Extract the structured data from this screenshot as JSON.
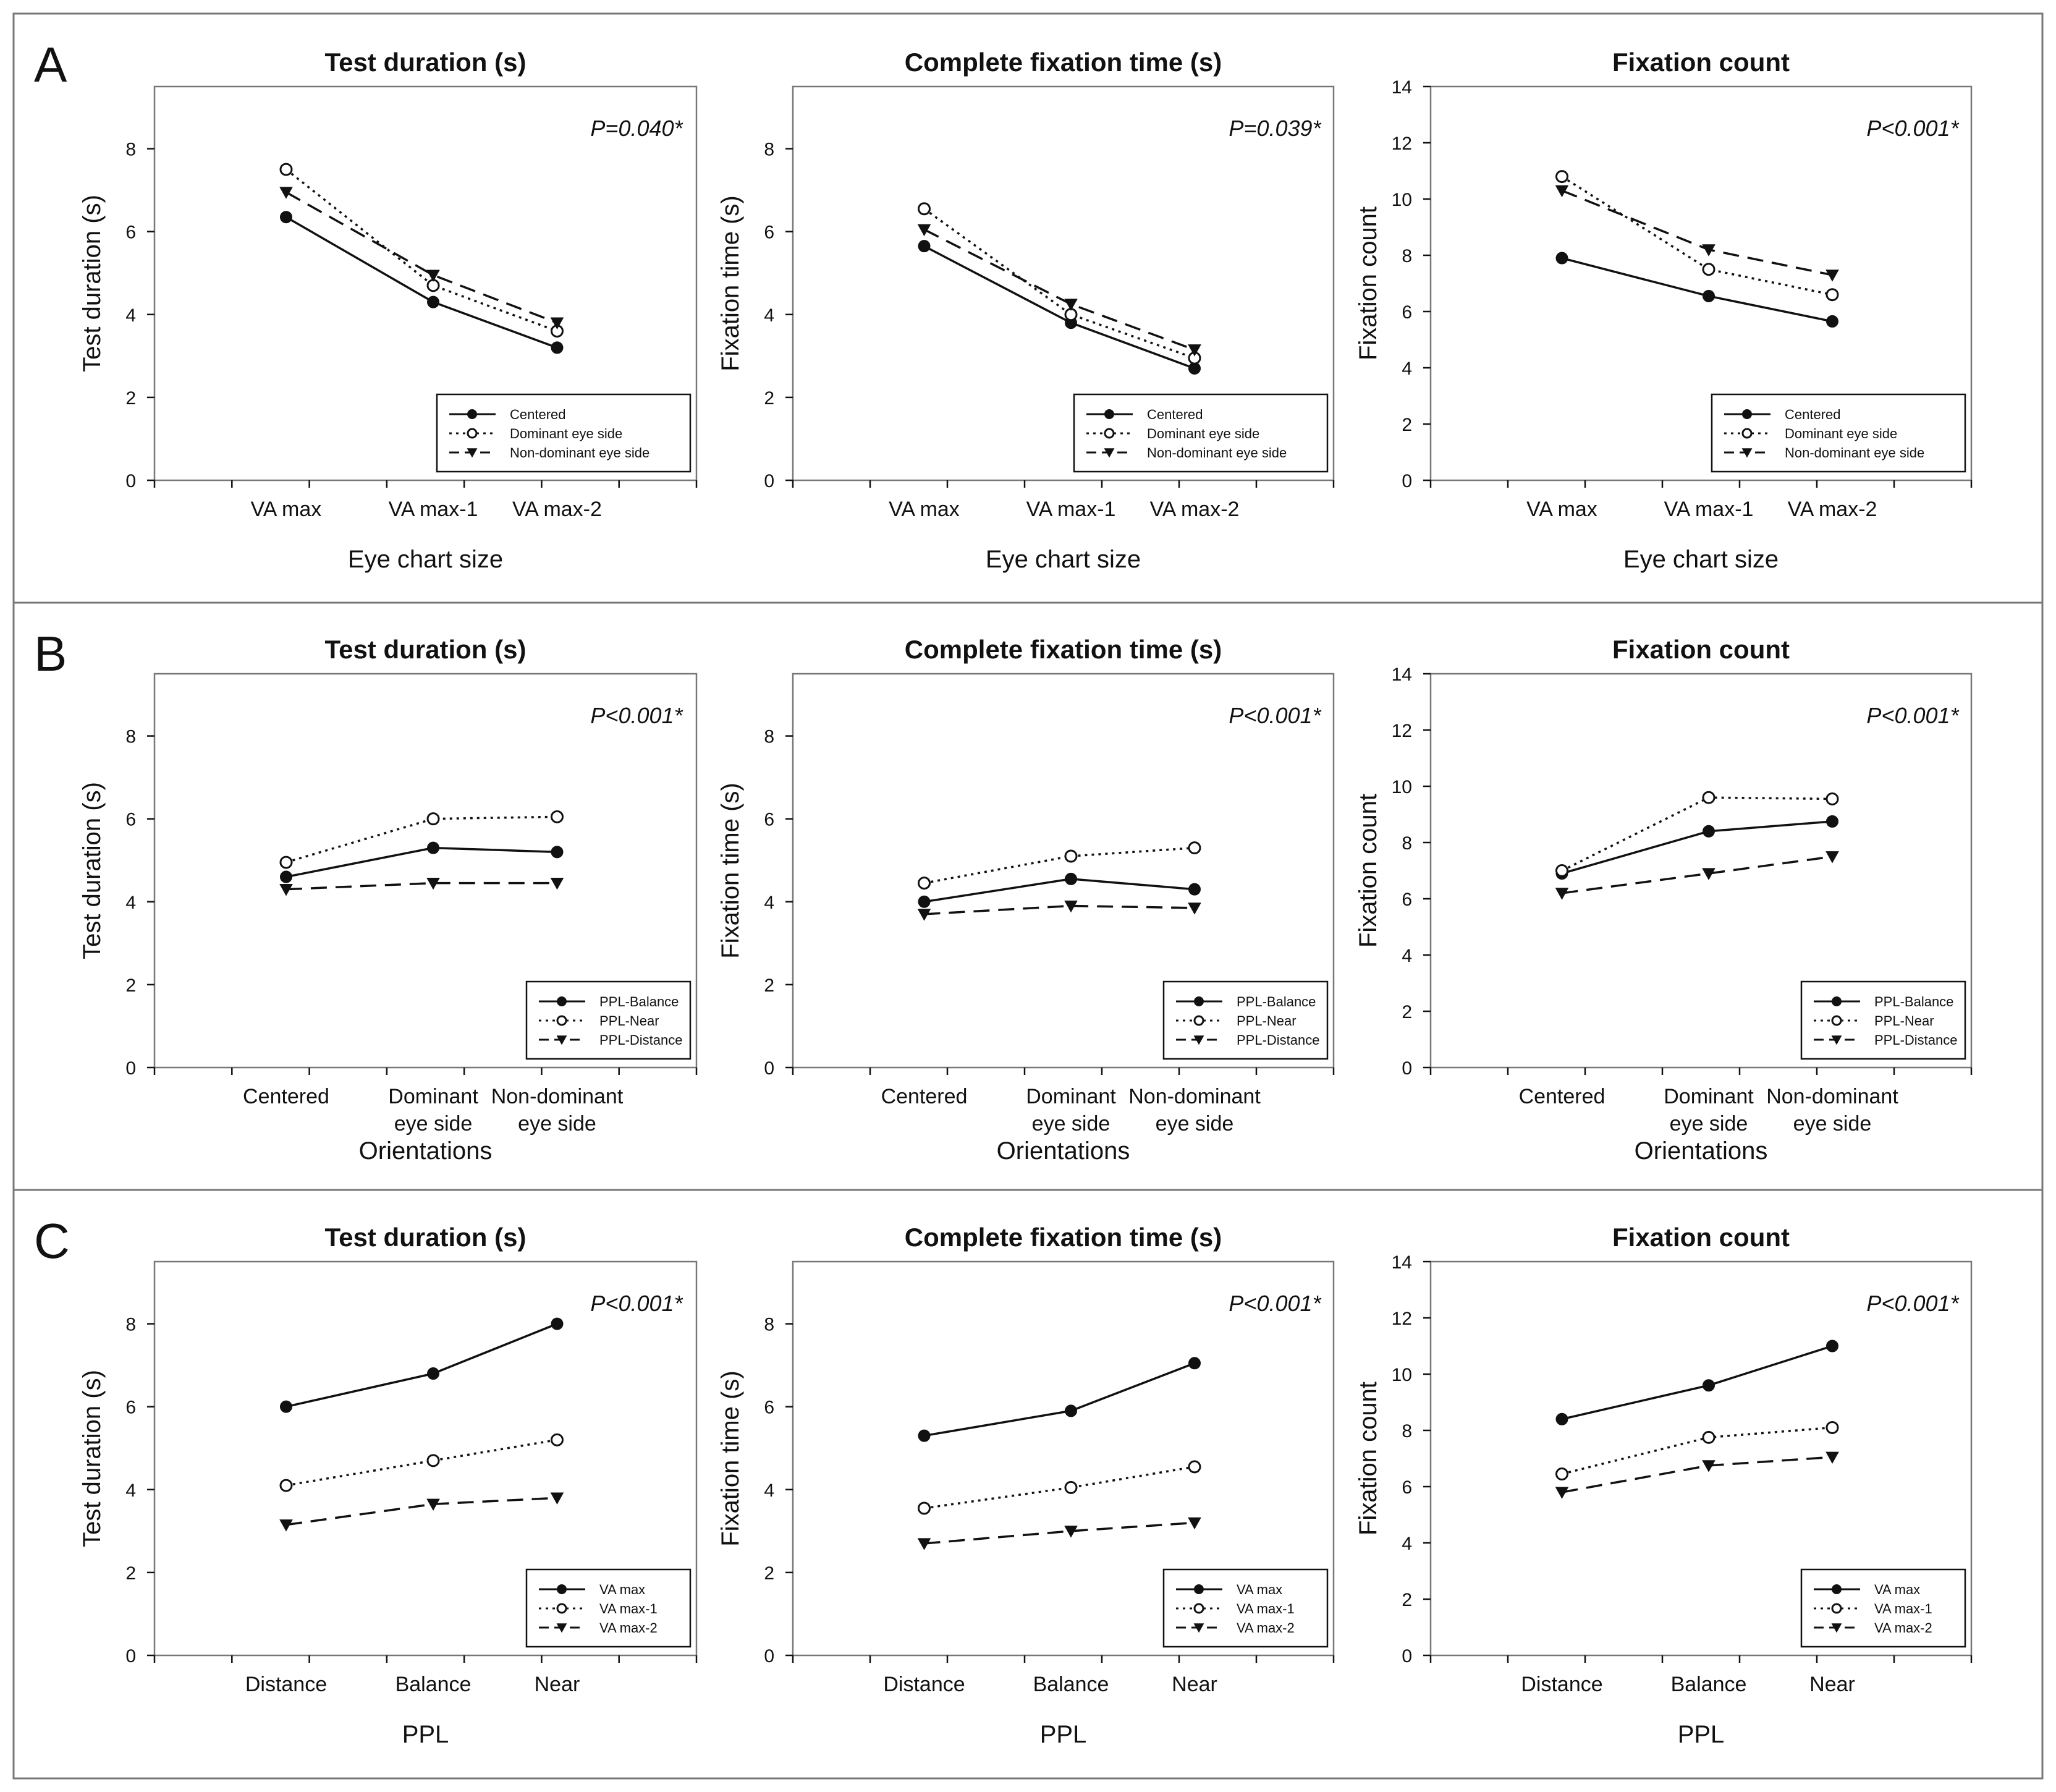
{
  "figure": {
    "title": "Figure with 9 line charts in panels A, B, C"
  },
  "styles": {
    "ink": "#111111",
    "frame": "#777777",
    "background": "#ffffff"
  },
  "series_styles": {
    "solid": {
      "marker": "filled-circle"
    },
    "dotted": {
      "marker": "open-circle"
    },
    "dashed": {
      "marker": "filled-triangle-down"
    }
  },
  "panels": [
    {
      "letter": "A"
    },
    {
      "letter": "B"
    },
    {
      "letter": "C"
    }
  ],
  "chart_data": [
    {
      "id": "A1",
      "panel": "A",
      "type": "line",
      "title": "Test duration (s)",
      "xlabel": "Eye chart size",
      "ylabel": "Test duration (s)",
      "ylim": [
        0,
        9.5
      ],
      "yticks": [
        0,
        2,
        4,
        6,
        8
      ],
      "categories": [
        "VA max",
        "VA max-1",
        "VA max-2"
      ],
      "x": [
        1.7,
        3.6,
        5.2
      ],
      "xlim": [
        0,
        7
      ],
      "pvalue": "P=0.040*",
      "series": [
        {
          "name": "Centered",
          "style": "solid",
          "values": [
            6.35,
            4.3,
            3.2
          ]
        },
        {
          "name": "Dominant eye side",
          "style": "dotted",
          "values": [
            7.5,
            4.7,
            3.6
          ]
        },
        {
          "name": "Non-dominant eye side",
          "style": "dashed",
          "values": [
            6.95,
            4.95,
            3.8
          ]
        }
      ]
    },
    {
      "id": "A2",
      "panel": "A",
      "type": "line",
      "title": "Complete fixation time (s)",
      "xlabel": "Eye chart size",
      "ylabel": "Fixation time (s)",
      "ylim": [
        0,
        9.5
      ],
      "yticks": [
        0,
        2,
        4,
        6,
        8
      ],
      "categories": [
        "VA max",
        "VA max-1",
        "VA max-2"
      ],
      "x": [
        1.7,
        3.6,
        5.2
      ],
      "xlim": [
        0,
        7
      ],
      "pvalue": "P=0.039*",
      "series": [
        {
          "name": "Centered",
          "style": "solid",
          "values": [
            5.65,
            3.8,
            2.7
          ]
        },
        {
          "name": "Dominant eye side",
          "style": "dotted",
          "values": [
            6.55,
            4.0,
            2.95
          ]
        },
        {
          "name": "Non-dominant eye side",
          "style": "dashed",
          "values": [
            6.05,
            4.25,
            3.15
          ]
        }
      ]
    },
    {
      "id": "A3",
      "panel": "A",
      "type": "line",
      "title": "Fixation count",
      "xlabel": "Eye chart size",
      "ylabel": "Fixation count",
      "ylim": [
        0,
        14
      ],
      "yticks": [
        0,
        2,
        4,
        6,
        8,
        10,
        12,
        14
      ],
      "categories": [
        "VA max",
        "VA max-1",
        "VA max-2"
      ],
      "x": [
        1.7,
        3.6,
        5.2
      ],
      "xlim": [
        0,
        7
      ],
      "pvalue": "P<0.001*",
      "series": [
        {
          "name": "Centered",
          "style": "solid",
          "values": [
            7.9,
            6.55,
            5.65
          ]
        },
        {
          "name": "Dominant eye side",
          "style": "dotted",
          "values": [
            10.8,
            7.5,
            6.6
          ]
        },
        {
          "name": "Non-dominant eye side",
          "style": "dashed",
          "values": [
            10.3,
            8.2,
            7.3
          ]
        }
      ]
    },
    {
      "id": "B1",
      "panel": "B",
      "type": "line",
      "title": "Test duration (s)",
      "xlabel": "Orientations",
      "ylabel": "Test duration (s)",
      "ylim": [
        0,
        9.5
      ],
      "yticks": [
        0,
        2,
        4,
        6,
        8
      ],
      "categories": [
        "Centered",
        "Dominant\neye side",
        "Non-dominant\neye side"
      ],
      "x": [
        1.7,
        3.6,
        5.2
      ],
      "xlim": [
        0,
        7
      ],
      "pvalue": "P<0.001*",
      "series": [
        {
          "name": "PPL-Balance",
          "style": "solid",
          "values": [
            4.6,
            5.3,
            5.2
          ]
        },
        {
          "name": "PPL-Near",
          "style": "dotted",
          "values": [
            4.95,
            6.0,
            6.05
          ]
        },
        {
          "name": "PPL-Distance",
          "style": "dashed",
          "values": [
            4.3,
            4.45,
            4.45
          ]
        }
      ]
    },
    {
      "id": "B2",
      "panel": "B",
      "type": "line",
      "title": "Complete fixation time (s)",
      "xlabel": "Orientations",
      "ylabel": "Fixation time (s)",
      "ylim": [
        0,
        9.5
      ],
      "yticks": [
        0,
        2,
        4,
        6,
        8
      ],
      "categories": [
        "Centered",
        "Dominant\neye side",
        "Non-dominant\neye side"
      ],
      "x": [
        1.7,
        3.6,
        5.2
      ],
      "xlim": [
        0,
        7
      ],
      "pvalue": "P<0.001*",
      "series": [
        {
          "name": "PPL-Balance",
          "style": "solid",
          "values": [
            4.0,
            4.55,
            4.3
          ]
        },
        {
          "name": "PPL-Near",
          "style": "dotted",
          "values": [
            4.45,
            5.1,
            5.3
          ]
        },
        {
          "name": "PPL-Distance",
          "style": "dashed",
          "values": [
            3.7,
            3.9,
            3.85
          ]
        }
      ]
    },
    {
      "id": "B3",
      "panel": "B",
      "type": "line",
      "title": "Fixation count",
      "xlabel": "Orientations",
      "ylabel": "Fixation count",
      "ylim": [
        0,
        14
      ],
      "yticks": [
        0,
        2,
        4,
        6,
        8,
        10,
        12,
        14
      ],
      "categories": [
        "Centered",
        "Dominant\neye side",
        "Non-dominant\neye side"
      ],
      "x": [
        1.7,
        3.6,
        5.2
      ],
      "xlim": [
        0,
        7
      ],
      "pvalue": "P<0.001*",
      "series": [
        {
          "name": "PPL-Balance",
          "style": "solid",
          "values": [
            6.9,
            8.4,
            8.75
          ]
        },
        {
          "name": "PPL-Near",
          "style": "dotted",
          "values": [
            7.0,
            9.6,
            9.55
          ]
        },
        {
          "name": "PPL-Distance",
          "style": "dashed",
          "values": [
            6.2,
            6.9,
            7.5
          ]
        }
      ]
    },
    {
      "id": "C1",
      "panel": "C",
      "type": "line",
      "title": "Test duration (s)",
      "xlabel": "PPL",
      "ylabel": "Test duration (s)",
      "ylim": [
        0,
        9.5
      ],
      "yticks": [
        0,
        2,
        4,
        6,
        8
      ],
      "categories": [
        "Distance",
        "Balance",
        "Near"
      ],
      "x": [
        1.7,
        3.6,
        5.2
      ],
      "xlim": [
        0,
        7
      ],
      "pvalue": "P<0.001*",
      "series": [
        {
          "name": "VA max",
          "style": "solid",
          "values": [
            6.0,
            6.8,
            8.0
          ]
        },
        {
          "name": "VA max-1",
          "style": "dotted",
          "values": [
            4.1,
            4.7,
            5.2
          ]
        },
        {
          "name": "VA max-2",
          "style": "dashed",
          "values": [
            3.15,
            3.65,
            3.8
          ]
        }
      ]
    },
    {
      "id": "C2",
      "panel": "C",
      "type": "line",
      "title": "Complete fixation time (s)",
      "xlabel": "PPL",
      "ylabel": "Fixation time (s)",
      "ylim": [
        0,
        9.5
      ],
      "yticks": [
        0,
        2,
        4,
        6,
        8
      ],
      "categories": [
        "Distance",
        "Balance",
        "Near"
      ],
      "x": [
        1.7,
        3.6,
        5.2
      ],
      "xlim": [
        0,
        7
      ],
      "pvalue": "P<0.001*",
      "series": [
        {
          "name": "VA max",
          "style": "solid",
          "values": [
            5.3,
            5.9,
            7.05
          ]
        },
        {
          "name": "VA max-1",
          "style": "dotted",
          "values": [
            3.55,
            4.05,
            4.55
          ]
        },
        {
          "name": "VA max-2",
          "style": "dashed",
          "values": [
            2.7,
            3.0,
            3.2
          ]
        }
      ]
    },
    {
      "id": "C3",
      "panel": "C",
      "type": "line",
      "title": "Fixation count",
      "xlabel": "PPL",
      "ylabel": "Fixation count",
      "ylim": [
        0,
        14
      ],
      "yticks": [
        0,
        2,
        4,
        6,
        8,
        10,
        12,
        14
      ],
      "categories": [
        "Distance",
        "Balance",
        "Near"
      ],
      "x": [
        1.7,
        3.6,
        5.2
      ],
      "xlim": [
        0,
        7
      ],
      "pvalue": "P<0.001*",
      "series": [
        {
          "name": "VA max",
          "style": "solid",
          "values": [
            8.4,
            9.6,
            11.0
          ]
        },
        {
          "name": "VA max-1",
          "style": "dotted",
          "values": [
            6.45,
            7.75,
            8.1
          ]
        },
        {
          "name": "VA max-2",
          "style": "dashed",
          "values": [
            5.8,
            6.75,
            7.05
          ]
        }
      ]
    }
  ]
}
